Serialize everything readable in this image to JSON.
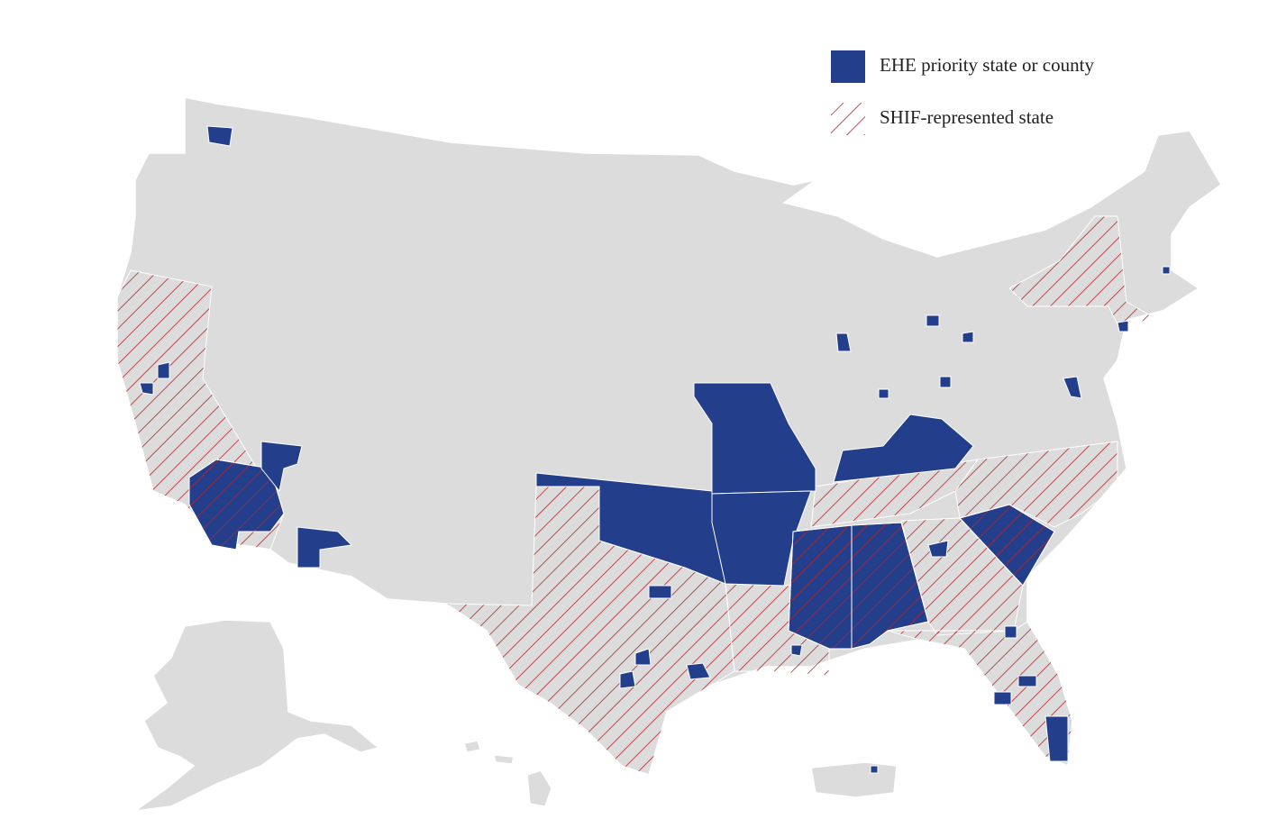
{
  "legend": {
    "items": [
      {
        "label": "EHE priority state or county"
      },
      {
        "label": "SHIF-represented state"
      }
    ]
  }
}
